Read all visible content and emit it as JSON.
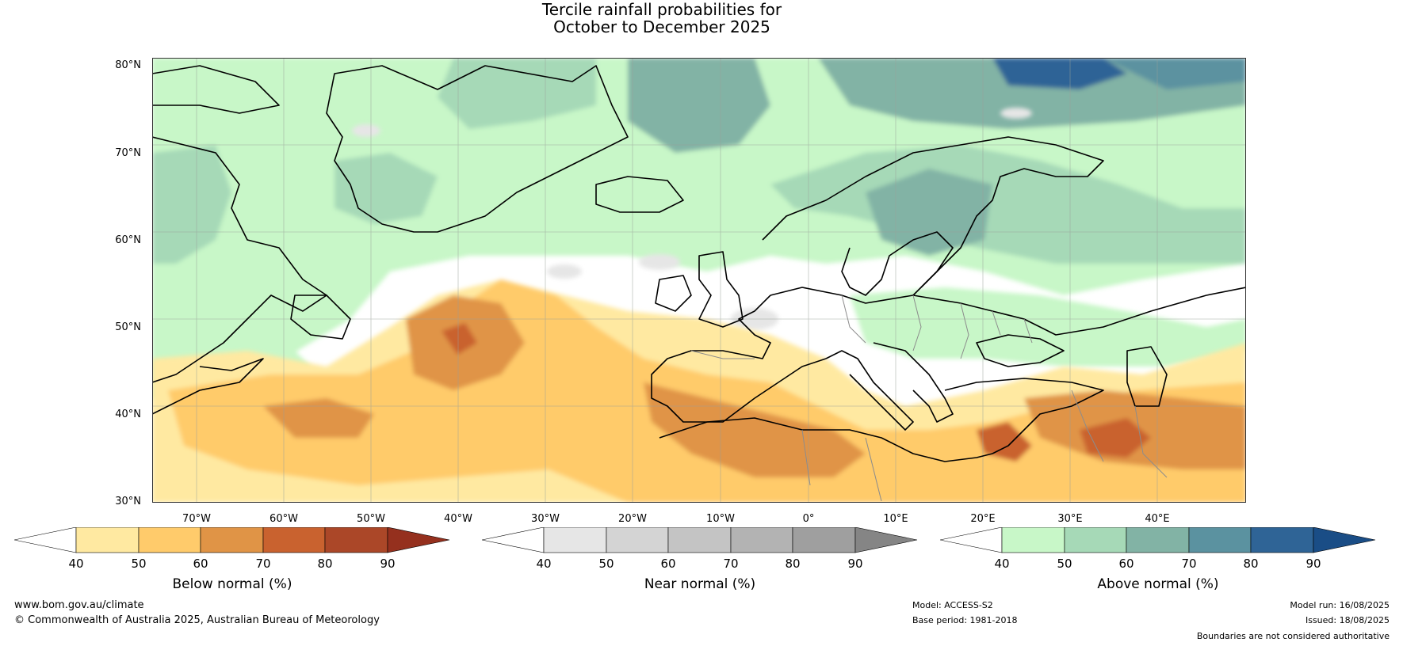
{
  "title": {
    "line1": "Tercile rainfall probabilities for",
    "line2": "October to December 2025"
  },
  "axes": {
    "lat_labels": [
      "80°N",
      "70°N",
      "60°N",
      "50°N",
      "40°N",
      "30°N"
    ],
    "lon_labels": [
      "70°W",
      "60°W",
      "50°W",
      "40°W",
      "30°W",
      "20°W",
      "10°W",
      "0°",
      "10°E",
      "20°E",
      "30°E",
      "40°E"
    ]
  },
  "legend": {
    "below": {
      "title": "Below normal (%)",
      "ticks": [
        "40",
        "50",
        "60",
        "70",
        "80",
        "90"
      ],
      "colors": [
        "#ffffff",
        "#ffe9a1",
        "#ffcb6b",
        "#e09446",
        "#c9622f",
        "#ab4728",
        "#95301e"
      ]
    },
    "near": {
      "title": "Near normal (%)",
      "ticks": [
        "40",
        "50",
        "60",
        "70",
        "80",
        "90"
      ],
      "colors": [
        "#ffffff",
        "#e6e6e6",
        "#d4d4d4",
        "#c4c4c4",
        "#b3b3b3",
        "#9f9f9f",
        "#858585"
      ]
    },
    "above": {
      "title": "Above normal (%)",
      "ticks": [
        "40",
        "50",
        "60",
        "70",
        "80",
        "90"
      ],
      "colors": [
        "#ffffff",
        "#c8f7c8",
        "#a6d9b7",
        "#82b3a5",
        "#5b92a0",
        "#2f6496",
        "#1a4d86"
      ]
    }
  },
  "footer": {
    "website": "www.bom.gov.au/climate",
    "copyright": "© Commonwealth of Australia 2025, Australian Bureau of Meteorology",
    "model": "Model: ACCESS-S2",
    "base_period": "Base period: 1981-2018",
    "model_run": "Model run: 16/08/2025",
    "issued": "Issued: 18/08/2025",
    "disclaimer": "Boundaries are not considered authoritative"
  }
}
